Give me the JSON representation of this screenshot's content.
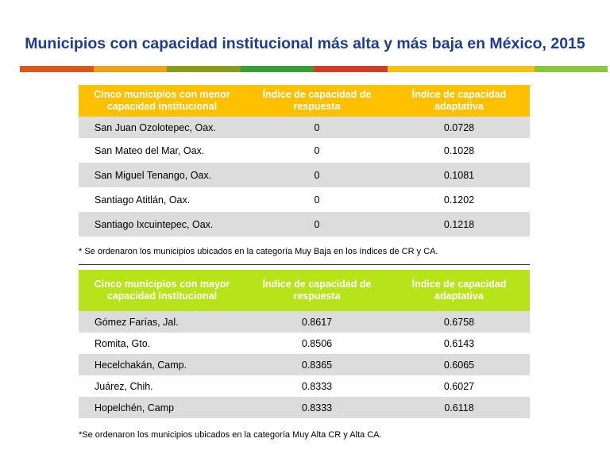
{
  "title": "Municipios con capacidad institucional más alta y más baja en México, 2015",
  "colors": {
    "title": "#1f3d8a",
    "bar_segments": [
      "#d35a1e",
      "#e8a21c",
      "#8a9a1e",
      "#3c9c3c",
      "#c84128",
      "#f2c21a",
      "#f2c21a",
      "#8cc63f"
    ],
    "low_header_bg": "#ffc000",
    "high_header_bg": "#b7e31b",
    "row_shade": "#dcdcdc"
  },
  "low_table": {
    "headers": [
      "Cinco municipios con menor capacidad institucional",
      "Índice de capacidad de respuesta",
      "Índice de capacidad adaptativa"
    ],
    "rows": [
      {
        "name": "San Juan Ozolotepec, Oax.",
        "cr": "0",
        "ca": "0.0728"
      },
      {
        "name": "San Mateo del Mar, Oax.",
        "cr": "0",
        "ca": "0.1028"
      },
      {
        "name": "San Miguel Tenango, Oax.",
        "cr": "0",
        "ca": "0.1081"
      },
      {
        "name": "Santiago Atitlán, Oax.",
        "cr": "0",
        "ca": "0.1202"
      },
      {
        "name": "Santiago Ixcuintepec, Oax.",
        "cr": "0",
        "ca": "0.1218"
      }
    ],
    "note": "* Se ordenaron los municipios ubicados en la categoría Muy Baja en los índices de CR y CA."
  },
  "high_table": {
    "headers": [
      "Cinco municipios con mayor capacidad institucional",
      "Índice de capacidad de respuesta",
      "Índice de capacidad adaptativa"
    ],
    "rows": [
      {
        "name": "Gómez Farías, Jal.",
        "cr": "0.8617",
        "ca": "0.6758"
      },
      {
        "name": "Romita, Gto.",
        "cr": "0.8506",
        "ca": "0.6143"
      },
      {
        "name": "Hecelchakán, Camp.",
        "cr": "0.8365",
        "ca": "0.6065"
      },
      {
        "name": "Juárez, Chih.",
        "cr": "0.8333",
        "ca": "0.6027"
      },
      {
        "name": "Hopelchén, Camp",
        "cr": "0.8333",
        "ca": "0.6118"
      }
    ],
    "note": "*Se ordenaron los municipios ubicados en la categoría Muy Alta CR y Alta CA."
  }
}
